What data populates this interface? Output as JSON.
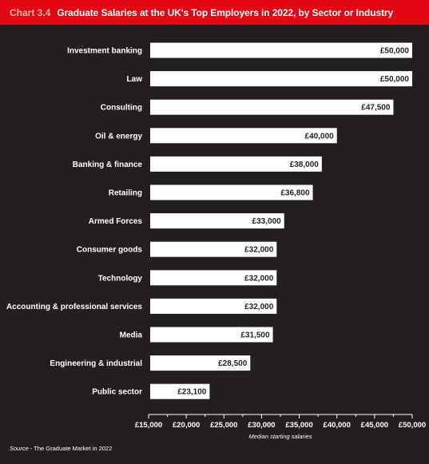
{
  "header": {
    "chart_number": "Chart 3.4",
    "title": "Graduate Salaries at the UK's Top Employers in 2022, by Sector or Industry"
  },
  "footer": {
    "source_label": "Source",
    "source_text": " - The Graduate Market in 2022"
  },
  "colors": {
    "background": "#231f20",
    "header": "#e30613",
    "bar": "#ffffff",
    "text": "#ffffff"
  },
  "chart_data": {
    "type": "bar",
    "orientation": "horizontal",
    "title": "Graduate Salaries at the UK's Top Employers in 2022, by Sector or Industry",
    "xlabel": "Median starting salaries",
    "ylabel": "",
    "xlim": [
      15000,
      50000
    ],
    "grid": false,
    "categories": [
      "Investment banking",
      "Law",
      "Consulting",
      "Oil & energy",
      "Banking & finance",
      "Retailing",
      "Armed Forces",
      "Consumer goods",
      "Technology",
      "Accounting & professional services",
      "Media",
      "Engineering & industrial",
      "Public sector"
    ],
    "values": [
      50000,
      50000,
      47500,
      40000,
      38000,
      36800,
      33000,
      32000,
      32000,
      32000,
      31500,
      28500,
      23100
    ],
    "value_labels": [
      "£50,000",
      "£50,000",
      "£47,500",
      "£40,000",
      "£38,000",
      "£36,800",
      "£33,000",
      "£32,000",
      "£32,000",
      "£32,000",
      "£31,500",
      "£28,500",
      "£23,100"
    ],
    "ticks": [
      15000,
      20000,
      25000,
      30000,
      35000,
      40000,
      45000,
      50000
    ],
    "tick_labels": [
      "£15,000",
      "£20,000",
      "£25,000",
      "£30,000",
      "£35,000",
      "£40,000",
      "£45,000",
      "£50,000"
    ]
  }
}
